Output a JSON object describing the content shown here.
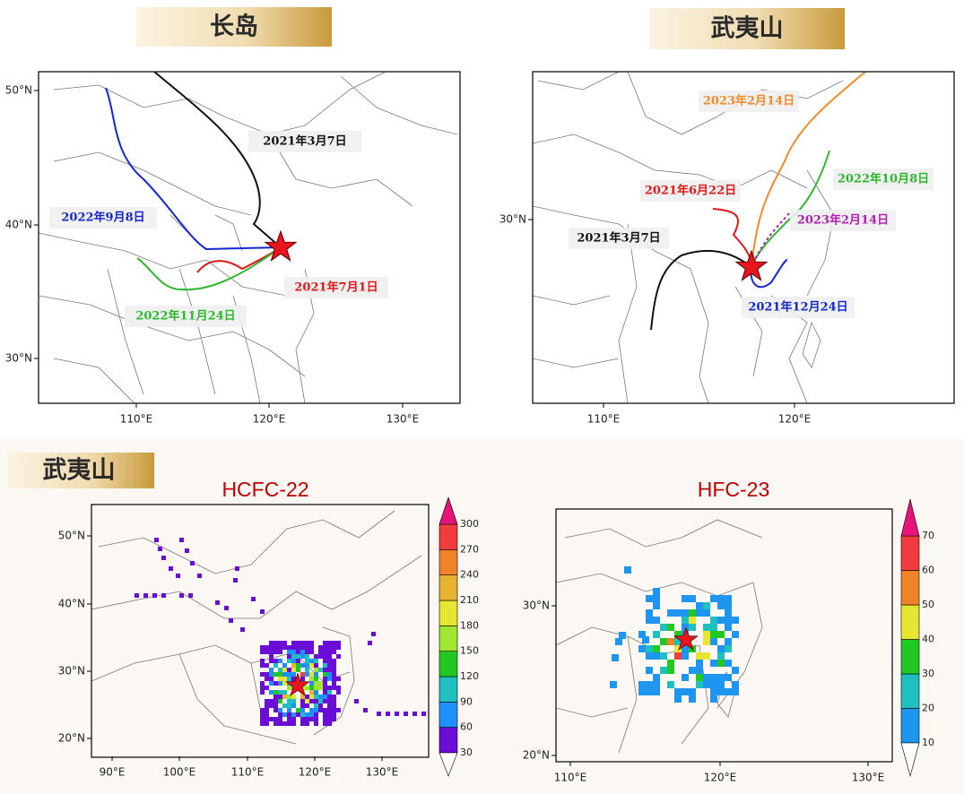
{
  "top_left": {
    "header": "长岛",
    "yticks": [
      "50°N",
      "40°N",
      "30°N"
    ],
    "xticks": [
      "110°E",
      "120°E",
      "130°E"
    ],
    "trajectories": [
      {
        "label": "2021年3月7日",
        "color": "#111111"
      },
      {
        "label": "2022年9月8日",
        "color": "#1428d0"
      },
      {
        "label": "2021年7月1日",
        "color": "#e01818"
      },
      {
        "label": "2022年11月24日",
        "color": "#2cb82c"
      }
    ]
  },
  "top_right": {
    "header": "武夷山",
    "yticks": [
      "30°N"
    ],
    "xticks": [
      "110°E",
      "120°E"
    ],
    "trajectories": [
      {
        "label": "2023年2月14日",
        "color": "#f08c28"
      },
      {
        "label": "2022年10月8日",
        "color": "#2cb82c"
      },
      {
        "label": "2021年6月22日",
        "color": "#e01818"
      },
      {
        "label": "2023年2月14日",
        "color": "#b41eb4"
      },
      {
        "label": "2021年3月7日",
        "color": "#111111"
      },
      {
        "label": "2021年12月24日",
        "color": "#1428d0"
      }
    ]
  },
  "bottom": {
    "header": "武夷山",
    "left": {
      "title": "HCFC-22",
      "yticks": [
        "50°N",
        "40°N",
        "30°N",
        "20°N"
      ],
      "xticks": [
        "90°E",
        "100°E",
        "110°E",
        "120°E",
        "130°E"
      ],
      "levels": [
        30,
        60,
        90,
        120,
        150,
        180,
        210,
        240,
        270,
        300
      ],
      "colors": [
        "#6a0dd6",
        "#1e90ff",
        "#20c0c0",
        "#22c822",
        "#a0e632",
        "#e6e632",
        "#e6b432",
        "#f08228",
        "#f03c3c"
      ],
      "over_color": "#e6147a"
    },
    "right": {
      "title": "HFC-23",
      "yticks": [
        "30°N",
        "20°N"
      ],
      "xticks": [
        "110°E",
        "120°E",
        "130°E"
      ],
      "levels": [
        10,
        20,
        30,
        40,
        50,
        60,
        70
      ],
      "colors": [
        "#1e96f0",
        "#20c0c0",
        "#22c822",
        "#e6e632",
        "#f08228",
        "#f03c3c"
      ],
      "over_color": "#e6147a"
    }
  }
}
